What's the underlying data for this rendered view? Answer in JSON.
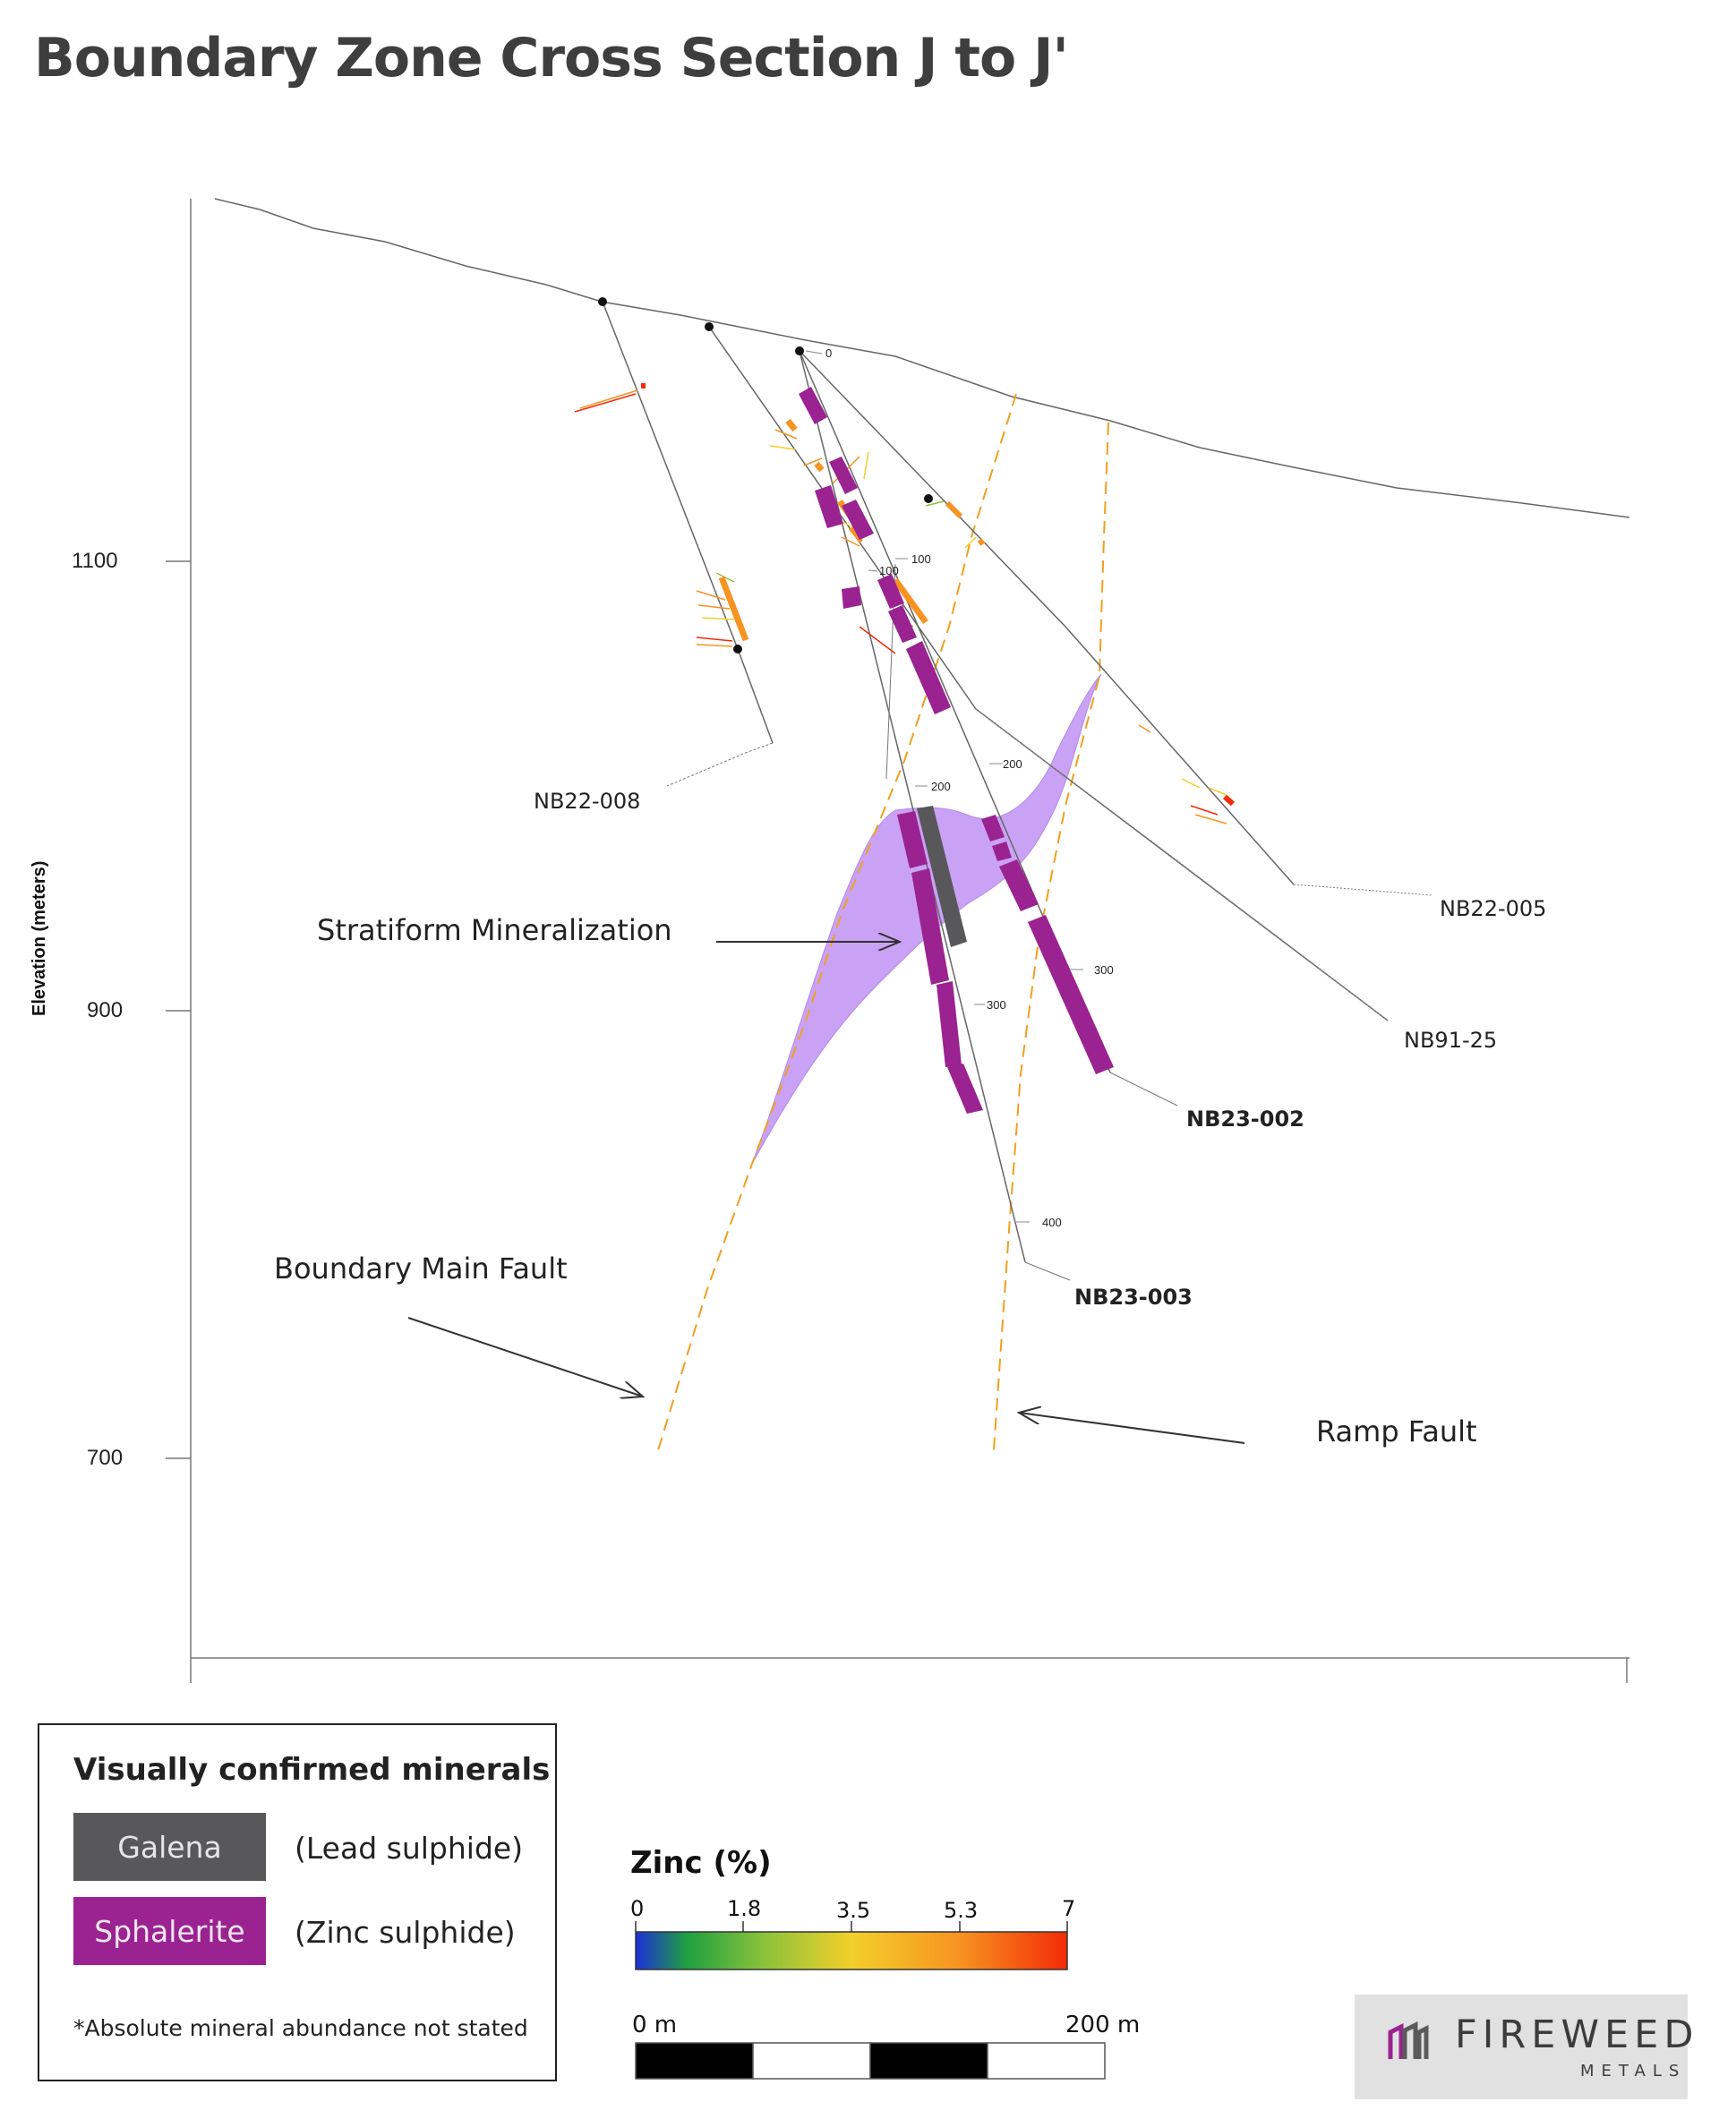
{
  "title": "Boundary Zone Cross Section J to J'",
  "axis": {
    "ylabel": "Elevation (meters)",
    "ticks": [
      "1100",
      "900",
      "700"
    ]
  },
  "drillholes": {
    "nb22_008": "NB22-008",
    "nb22_005": "NB22-005",
    "nb91_25": "NB91-25",
    "nb23_002": "NB23-002",
    "nb23_003": "NB23-003"
  },
  "depth_markers": {
    "d0": "0",
    "d100a": "100",
    "d100b": "100",
    "d200a": "200",
    "d200b": "200",
    "d300a": "300",
    "d300b": "300",
    "d400": "400"
  },
  "annotations": {
    "stratiform": "Stratiform Mineralization",
    "main_fault": "Boundary Main Fault",
    "ramp_fault": "Ramp Fault"
  },
  "legend": {
    "title": "Visually confirmed minerals",
    "galena": "Galena",
    "galena_desc": "(Lead sulphide)",
    "sphalerite": "Sphalerite",
    "sphalerite_desc": "(Zinc sulphide)",
    "note": "*Absolute mineral abundance not stated"
  },
  "zinc_scale": {
    "title": "Zinc (%)",
    "ticks": [
      "0",
      "1.8",
      "3.5",
      "5.3",
      "7"
    ]
  },
  "scale_bar": {
    "start": "0 m",
    "end": "200 m"
  },
  "logo": {
    "word": "FIREWEED",
    "sub": "METALS"
  },
  "colors": {
    "sphalerite": "#9b2291",
    "galena": "#58585a",
    "stratiform": "#c9a2f5",
    "fault": "#f0a020"
  }
}
